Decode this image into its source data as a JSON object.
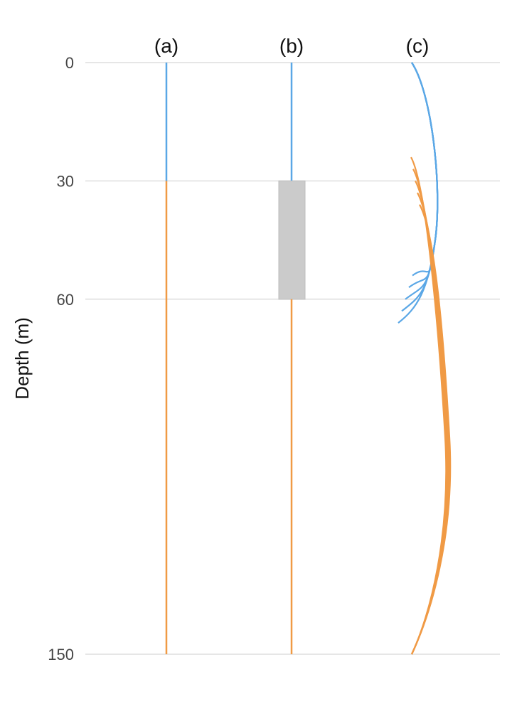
{
  "axis": {
    "ylabel": "Depth (m)",
    "ylim": [
      0,
      150
    ],
    "ticks": [
      0,
      30,
      60,
      150
    ],
    "grid": true
  },
  "colors": {
    "upper": "#5aa7e6",
    "lower": "#f09a45",
    "band": "#cbcbcb",
    "grid": "#e6e6e6"
  },
  "panels": [
    {
      "label": "(a)",
      "interface_depth": 30
    },
    {
      "label": "(b)",
      "transition_top": 30,
      "transition_bottom": 60
    },
    {
      "label": "(c)",
      "upper_end_depths": [
        54,
        57,
        60,
        63,
        66
      ],
      "lower_start_depths": [
        24,
        27,
        30,
        33,
        36
      ]
    }
  ]
}
